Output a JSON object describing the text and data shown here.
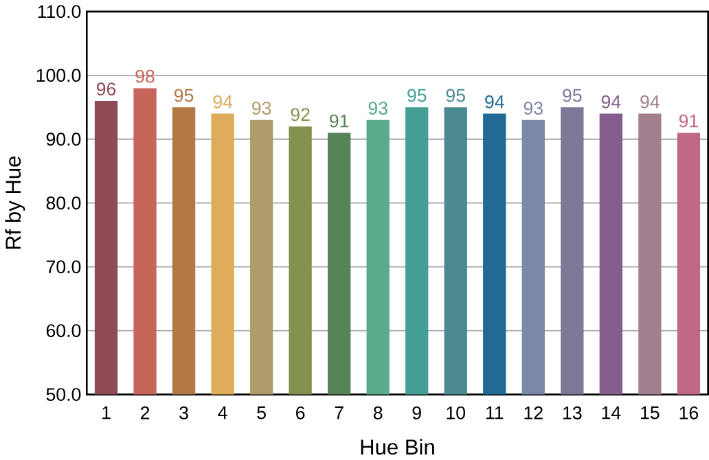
{
  "chart_data": {
    "type": "bar",
    "xlabel": "Hue Bin",
    "ylabel": "Rf by Hue",
    "categories": [
      "1",
      "2",
      "3",
      "4",
      "5",
      "6",
      "7",
      "8",
      "9",
      "10",
      "11",
      "12",
      "13",
      "14",
      "15",
      "16"
    ],
    "values": [
      96,
      98,
      95,
      94,
      93,
      92,
      91,
      93,
      95,
      95,
      94,
      93,
      95,
      94,
      94,
      91
    ],
    "colors": [
      "#8e4a55",
      "#c8655a",
      "#b47845",
      "#dcac58",
      "#ae9c6a",
      "#849250",
      "#578457",
      "#5aaa8c",
      "#44a095",
      "#4a8a90",
      "#216a95",
      "#7c88a6",
      "#7e7898",
      "#835d8c",
      "#a0808f",
      "#c06888"
    ],
    "data_labels": true,
    "ylim": [
      50,
      110
    ],
    "yticks": [
      {
        "value": 50,
        "label": "50.0"
      },
      {
        "value": 60,
        "label": "60.0"
      },
      {
        "value": 70,
        "label": "70.0"
      },
      {
        "value": 80,
        "label": "80.0"
      },
      {
        "value": 90,
        "label": "90.0"
      },
      {
        "value": 100,
        "label": "100.0"
      },
      {
        "value": 110,
        "label": "110.0"
      }
    ],
    "grid": "y"
  }
}
